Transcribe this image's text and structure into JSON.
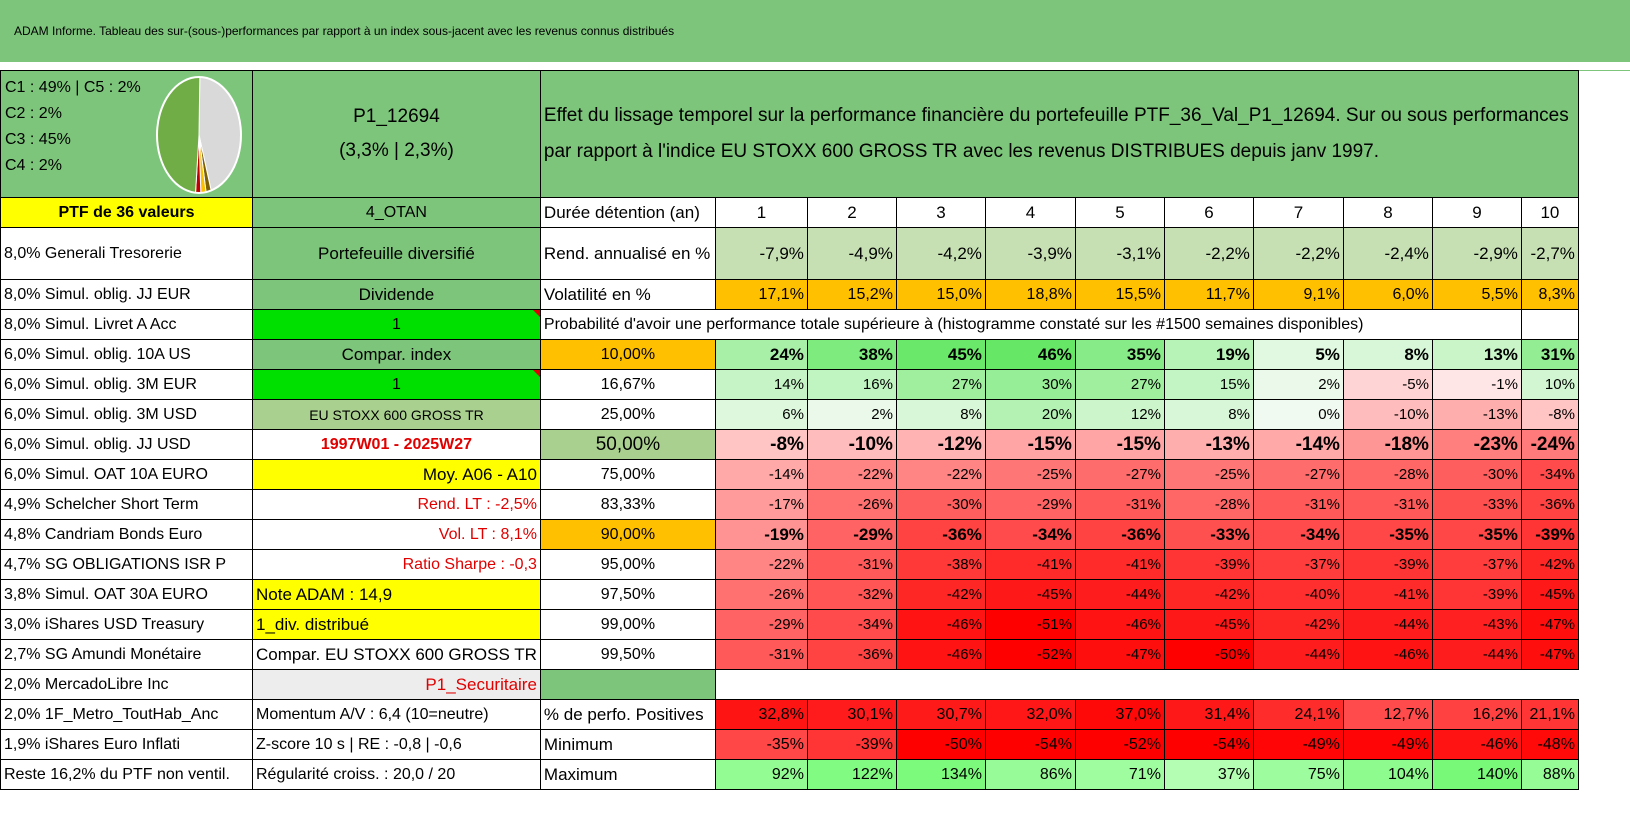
{
  "title": "ADAM Informe. Tableau des sur-(sous-)performances par rapport à un index sous-jacent avec les revenus connus distribués",
  "pie_legend": [
    "C1 : 49% | C5 : 2%",
    "C2 : 2%",
    "C3 : 45%",
    "C4 : 2%"
  ],
  "pie_slices": [
    {
      "label": "C1",
      "value": 49,
      "color": "#70ad47"
    },
    {
      "label": "C2",
      "value": 2,
      "color": "#c00000"
    },
    {
      "label": "C3",
      "value": 45,
      "color": "#d9d9d9"
    },
    {
      "label": "C4",
      "value": 2,
      "color": "#ffc000"
    },
    {
      "label": "C5",
      "value": 2,
      "color": "#7f6000"
    }
  ],
  "portfolio_id": "P1_12694",
  "portfolio_perf": "(3,3% | 2,3%)",
  "description": "Effet du lissage temporel sur la performance financière du portefeuille PTF_36_Val_P1_12694. Sur ou sous performances par rapport à l'indice EU STOXX 600 GROSS TR avec les revenus DISTRIBUES depuis janv 1997.",
  "left_header": "PTF de 36 valeurs",
  "holdings": [
    "8,0% Generali Tresorerie",
    "8,0% Simul. oblig. JJ EUR",
    "8,0% Simul. Livret A Acc",
    "6,0% Simul. oblig. 10A US",
    "6,0% Simul. oblig. 3M EUR",
    "6,0% Simul. oblig. 3M USD",
    "6,0% Simul. oblig. JJ USD",
    "6,0% Simul. OAT 10A EURO",
    "4,9% Schelcher Short Term",
    "4,8% Candriam Bonds Euro",
    "4,7% SG OBLIGATIONS ISR P",
    "3,8% Simul. OAT 30A EURO",
    "3,0% iShares USD Treasury",
    "2,7% SG Amundi Monétaire",
    "2,0% MercadoLibre Inc",
    "2,0% 1F_Metro_ToutHab_Anc",
    "1,9% iShares Euro Inflati",
    "Reste 16,2% du PTF non ventil."
  ],
  "info": [
    "4_OTAN",
    "Portefeuille diversifié",
    "Dividende",
    "1",
    "Compar. index",
    "1",
    "EU STOXX 600 GROSS TR",
    "1997W01 - 2025W27",
    "Moy. A06 - A10",
    "Rend. LT : -2,5%",
    "Vol. LT : 8,1%",
    "Ratio Sharpe : -0,3",
    "Note ADAM : 14,9",
    "1_div. distribué",
    "Compar. EU STOXX 600 GROSS TR",
    "P1_Securitaire",
    "Momentum A/V : 6,4 (10=neutre)",
    "Z-score 10 s | RE : -0,8 | -0,6",
    "Régularité croiss. : 20,0 / 20"
  ],
  "duration_label": "Durée détention (an)",
  "years": [
    "1",
    "2",
    "3",
    "4",
    "5",
    "6",
    "7",
    "8",
    "9",
    "10"
  ],
  "rend_label": "Rend. annualisé en %",
  "rend": [
    "-7,9%",
    "-4,9%",
    "-4,2%",
    "-3,9%",
    "-3,1%",
    "-2,2%",
    "-2,2%",
    "-2,4%",
    "-2,9%",
    "-2,7%"
  ],
  "vol_label": "Volatilité en %",
  "vol": [
    "17,1%",
    "15,2%",
    "15,0%",
    "18,8%",
    "15,5%",
    "11,7%",
    "9,1%",
    "6,0%",
    "5,5%",
    "8,3%"
  ],
  "prob_label": "Probabilité d'avoir une performance totale supérieure à (histogramme constaté sur les #1500 semaines disponibles)",
  "quantiles": [
    {
      "p": "10,00%",
      "v": [
        "24%",
        "38%",
        "45%",
        "46%",
        "35%",
        "19%",
        "5%",
        "8%",
        "13%",
        "31%"
      ]
    },
    {
      "p": "16,67%",
      "v": [
        "14%",
        "16%",
        "27%",
        "30%",
        "27%",
        "15%",
        "2%",
        "-5%",
        "-1%",
        "10%"
      ]
    },
    {
      "p": "25,00%",
      "v": [
        "6%",
        "2%",
        "8%",
        "20%",
        "12%",
        "8%",
        "0%",
        "-10%",
        "-13%",
        "-8%"
      ]
    },
    {
      "p": "50,00%",
      "v": [
        "-8%",
        "-10%",
        "-12%",
        "-15%",
        "-15%",
        "-13%",
        "-14%",
        "-18%",
        "-23%",
        "-24%"
      ]
    },
    {
      "p": "75,00%",
      "v": [
        "-14%",
        "-22%",
        "-22%",
        "-25%",
        "-27%",
        "-25%",
        "-27%",
        "-28%",
        "-30%",
        "-34%"
      ]
    },
    {
      "p": "83,33%",
      "v": [
        "-17%",
        "-26%",
        "-30%",
        "-29%",
        "-31%",
        "-28%",
        "-31%",
        "-31%",
        "-33%",
        "-36%"
      ]
    },
    {
      "p": "90,00%",
      "v": [
        "-19%",
        "-29%",
        "-36%",
        "-34%",
        "-36%",
        "-33%",
        "-34%",
        "-35%",
        "-35%",
        "-39%"
      ]
    },
    {
      "p": "95,00%",
      "v": [
        "-22%",
        "-31%",
        "-38%",
        "-41%",
        "-41%",
        "-39%",
        "-37%",
        "-39%",
        "-37%",
        "-42%"
      ]
    },
    {
      "p": "97,50%",
      "v": [
        "-26%",
        "-32%",
        "-42%",
        "-45%",
        "-44%",
        "-42%",
        "-40%",
        "-41%",
        "-39%",
        "-45%"
      ]
    },
    {
      "p": "99,00%",
      "v": [
        "-29%",
        "-34%",
        "-46%",
        "-51%",
        "-46%",
        "-45%",
        "-42%",
        "-44%",
        "-43%",
        "-47%"
      ]
    },
    {
      "p": "99,50%",
      "v": [
        "-31%",
        "-36%",
        "-46%",
        "-52%",
        "-47%",
        "-50%",
        "-44%",
        "-46%",
        "-44%",
        "-47%"
      ]
    }
  ],
  "pos_label": "% de perfo. Positives",
  "pos": [
    "32,8%",
    "30,1%",
    "30,7%",
    "32,0%",
    "37,0%",
    "31,4%",
    "24,1%",
    "12,7%",
    "16,2%",
    "21,1%"
  ],
  "min_label": "Minimum",
  "min": [
    "-35%",
    "-39%",
    "-50%",
    "-54%",
    "-52%",
    "-54%",
    "-49%",
    "-49%",
    "-46%",
    "-48%"
  ],
  "max_label": "Maximum",
  "max": [
    "92%",
    "122%",
    "134%",
    "86%",
    "71%",
    "37%",
    "75%",
    "104%",
    "140%",
    "88%"
  ]
}
